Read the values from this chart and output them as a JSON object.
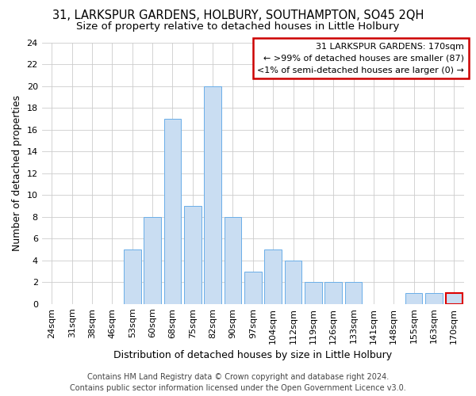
{
  "title1": "31, LARKSPUR GARDENS, HOLBURY, SOUTHAMPTON, SO45 2QH",
  "title2": "Size of property relative to detached houses in Little Holbury",
  "xlabel": "Distribution of detached houses by size in Little Holbury",
  "ylabel": "Number of detached properties",
  "categories": [
    "24sqm",
    "31sqm",
    "38sqm",
    "46sqm",
    "53sqm",
    "60sqm",
    "68sqm",
    "75sqm",
    "82sqm",
    "90sqm",
    "97sqm",
    "104sqm",
    "112sqm",
    "119sqm",
    "126sqm",
    "133sqm",
    "141sqm",
    "148sqm",
    "155sqm",
    "163sqm",
    "170sqm"
  ],
  "values": [
    0,
    0,
    0,
    0,
    5,
    8,
    17,
    9,
    20,
    8,
    3,
    5,
    4,
    2,
    2,
    2,
    0,
    0,
    1,
    1,
    1
  ],
  "bar_color": "#c9ddf2",
  "bar_edge_color": "#6aaee8",
  "highlight_bar_index": 20,
  "highlight_bar_edge_color": "#dd0000",
  "annotation_lines": [
    "31 LARKSPUR GARDENS: 170sqm",
    "← >99% of detached houses are smaller (87)",
    "<1% of semi-detached houses are larger (0) →"
  ],
  "annotation_box_color": "#ffffff",
  "annotation_box_edge_color": "#cc0000",
  "ylim": [
    0,
    24
  ],
  "yticks": [
    0,
    2,
    4,
    6,
    8,
    10,
    12,
    14,
    16,
    18,
    20,
    22,
    24
  ],
  "footer1": "Contains HM Land Registry data © Crown copyright and database right 2024.",
  "footer2": "Contains public sector information licensed under the Open Government Licence v3.0.",
  "bg_color": "#ffffff",
  "grid_color": "#cccccc",
  "title_fontsize": 10.5,
  "subtitle_fontsize": 9.5,
  "axis_label_fontsize": 9,
  "tick_fontsize": 8,
  "annotation_fontsize": 8,
  "footer_fontsize": 7
}
